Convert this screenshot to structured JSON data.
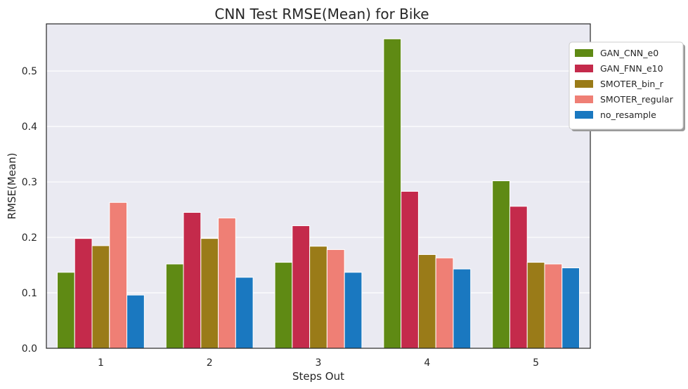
{
  "chart_data": {
    "type": "bar",
    "title": "CNN Test RMSE(Mean) for Bike",
    "xlabel": "Steps Out",
    "ylabel": "RMSE(Mean)",
    "categories": [
      "1",
      "2",
      "3",
      "4",
      "5"
    ],
    "ylim": [
      0,
      0.585
    ],
    "yticks": [
      0.0,
      0.1,
      0.2,
      0.3,
      0.4,
      0.5
    ],
    "ytick_labels": [
      "0.0",
      "0.1",
      "0.2",
      "0.3",
      "0.4",
      "0.5"
    ],
    "grid": true,
    "legend_position": "top-right",
    "series": [
      {
        "name": "GAN_CNN_e0",
        "color": "#5f8a14",
        "values": [
          0.137,
          0.152,
          0.155,
          0.558,
          0.302
        ]
      },
      {
        "name": "GAN_FNN_e10",
        "color": "#c42a4b",
        "values": [
          0.198,
          0.245,
          0.221,
          0.283,
          0.256
        ]
      },
      {
        "name": "SMOTER_bin_r",
        "color": "#9a7b18",
        "values": [
          0.185,
          0.198,
          0.184,
          0.169,
          0.155
        ]
      },
      {
        "name": "SMOTER_regular",
        "color": "#ef7f75",
        "values": [
          0.263,
          0.235,
          0.178,
          0.163,
          0.152
        ]
      },
      {
        "name": "no_resample",
        "color": "#1a78c0",
        "values": [
          0.096,
          0.128,
          0.137,
          0.143,
          0.145
        ]
      }
    ]
  }
}
